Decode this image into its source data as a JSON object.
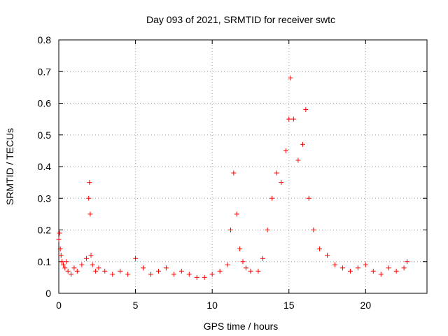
{
  "chart_data": {
    "type": "scatter",
    "title": "Day 093 of 2021, SRMTID for receiver swtc",
    "xlabel": "GPS time / hours",
    "ylabel": "SRMTID / TECUs",
    "xlim": [
      0,
      24
    ],
    "ylim": [
      0,
      0.8
    ],
    "xticks": [
      0,
      5,
      10,
      15,
      20
    ],
    "xtick_labels": [
      "0",
      "5",
      "10",
      "15",
      "20"
    ],
    "yticks": [
      0,
      0.1,
      0.2,
      0.3,
      0.4,
      0.5,
      0.6,
      0.7,
      0.8
    ],
    "ytick_labels": [
      "0",
      "0.1",
      "0.2",
      "0.3",
      "0.4",
      "0.5",
      "0.6",
      "0.7",
      "0.8"
    ],
    "grid": true,
    "marker": "+",
    "color": "#ff0000",
    "series": [
      {
        "name": "SRMTID",
        "x": [
          0.0,
          0.05,
          0.1,
          0.15,
          0.2,
          0.3,
          0.4,
          0.5,
          0.6,
          0.8,
          1.0,
          1.2,
          1.5,
          1.8,
          1.95,
          2.0,
          2.05,
          2.1,
          2.2,
          2.4,
          2.6,
          3.0,
          3.5,
          4.0,
          4.5,
          5.0,
          5.5,
          6.0,
          6.5,
          7.0,
          7.5,
          8.0,
          8.5,
          9.0,
          9.5,
          10.0,
          10.5,
          11.0,
          11.2,
          11.4,
          11.6,
          11.8,
          12.0,
          12.2,
          12.5,
          13.0,
          13.3,
          13.6,
          13.9,
          14.2,
          14.5,
          14.8,
          15.0,
          15.1,
          15.3,
          15.6,
          15.9,
          16.1,
          16.3,
          16.6,
          17.0,
          17.5,
          18.0,
          18.5,
          19.0,
          19.5,
          20.0,
          20.5,
          21.0,
          21.5,
          22.0,
          22.5,
          22.7
        ],
        "y": [
          0.17,
          0.19,
          0.14,
          0.12,
          0.1,
          0.09,
          0.08,
          0.1,
          0.07,
          0.06,
          0.08,
          0.07,
          0.09,
          0.11,
          0.3,
          0.35,
          0.25,
          0.12,
          0.09,
          0.07,
          0.08,
          0.07,
          0.06,
          0.07,
          0.06,
          0.11,
          0.08,
          0.06,
          0.07,
          0.08,
          0.06,
          0.07,
          0.06,
          0.05,
          0.05,
          0.06,
          0.07,
          0.09,
          0.2,
          0.38,
          0.25,
          0.14,
          0.1,
          0.08,
          0.07,
          0.07,
          0.11,
          0.2,
          0.3,
          0.38,
          0.35,
          0.45,
          0.55,
          0.68,
          0.55,
          0.42,
          0.47,
          0.58,
          0.3,
          0.2,
          0.14,
          0.12,
          0.09,
          0.08,
          0.07,
          0.08,
          0.09,
          0.07,
          0.06,
          0.08,
          0.07,
          0.08,
          0.1
        ]
      }
    ]
  }
}
